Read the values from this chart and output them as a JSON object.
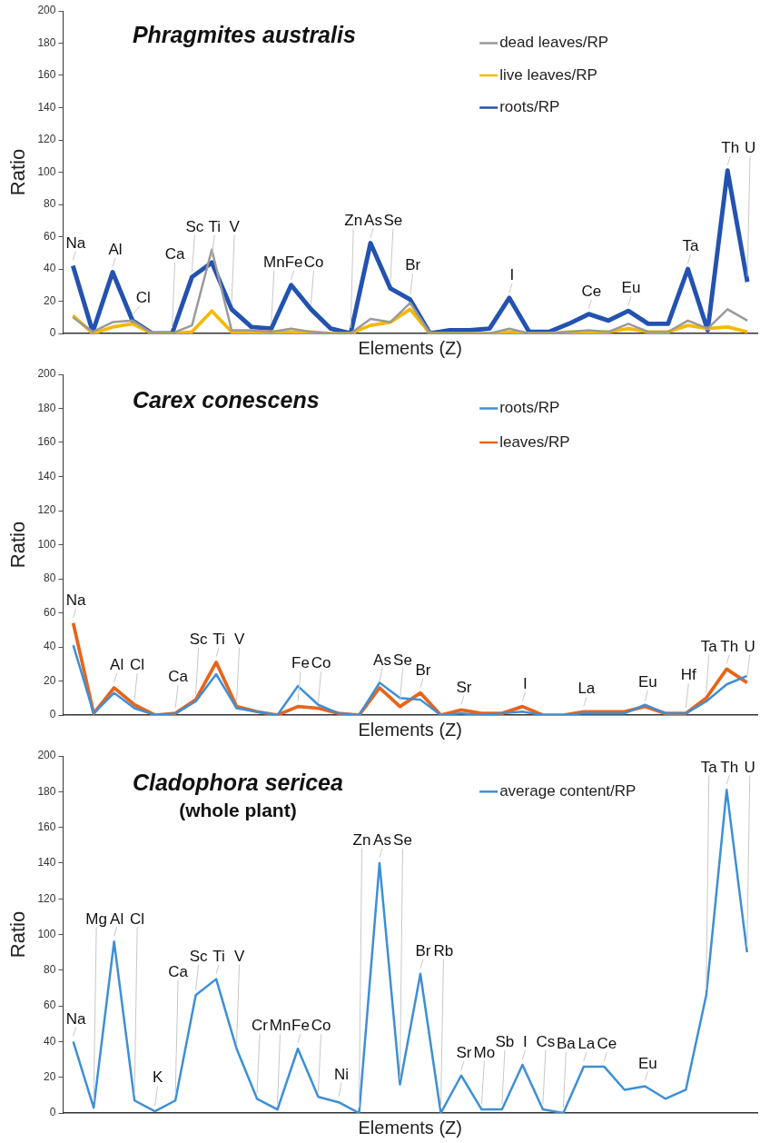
{
  "chart_data": [
    {
      "type": "line",
      "title": "Phragmites australis",
      "xlabel": "Elements (Z)",
      "ylabel": "Ratio",
      "categories": [
        null,
        null,
        null,
        null,
        null,
        null,
        null,
        null,
        null,
        null,
        null,
        null,
        null,
        null,
        null,
        null,
        null,
        null,
        null,
        null,
        null,
        null,
        null,
        null,
        null,
        null,
        null,
        null,
        null,
        null,
        null,
        null,
        null,
        null,
        null
      ],
      "ylim": [
        0,
        200
      ],
      "yticks": [
        0,
        20,
        40,
        60,
        80,
        100,
        120,
        140,
        160,
        180,
        200
      ],
      "legend": "top right",
      "marker": "none",
      "tick_labels": "y",
      "series": [
        {
          "name": "dead leaves/RP",
          "color": "#9a9a9a",
          "values": [
            10,
            1,
            7,
            8,
            0,
            0,
            5,
            52,
            2,
            2,
            1,
            3,
            1,
            0,
            0,
            9,
            7,
            19,
            0,
            0,
            0,
            0,
            3,
            0,
            0,
            1,
            2,
            1,
            6,
            1,
            1,
            8,
            3,
            15,
            8
          ]
        },
        {
          "name": "live leaves/RP",
          "color": "#f5b800",
          "values": [
            11,
            0,
            4,
            6,
            0,
            0,
            1,
            14,
            1,
            1,
            1,
            1,
            1,
            0,
            0,
            5,
            7,
            15,
            0,
            0,
            0,
            0,
            1,
            0,
            0,
            1,
            1,
            1,
            3,
            1,
            1,
            5,
            3,
            4,
            1
          ]
        },
        {
          "name": "roots/RP",
          "color": "#2352b0",
          "values": [
            42,
            1,
            38,
            8,
            0,
            0,
            35,
            44,
            15,
            4,
            3,
            30,
            15,
            3,
            0,
            56,
            28,
            21,
            0,
            2,
            2,
            3,
            22,
            1,
            1,
            6,
            12,
            8,
            14,
            6,
            6,
            40,
            2,
            101,
            32
          ],
          "value_labels": [
            "Na",
            null,
            "Al",
            null,
            null,
            "Ca",
            "Sc",
            "Ti",
            "V",
            null,
            "Mn",
            "Fe",
            "Co",
            null,
            "Zn",
            "As",
            "Se",
            "Br",
            null,
            null,
            null,
            null,
            "I",
            null,
            null,
            null,
            "Ce",
            null,
            "Eu",
            null,
            null,
            "Ta",
            null,
            "Th",
            "U"
          ]
        }
      ],
      "annotations": [
        "Cl"
      ]
    },
    {
      "type": "line",
      "title": "Carex conescens",
      "xlabel": "Elements (Z)",
      "ylabel": "Ratio",
      "categories": [
        null,
        null,
        null,
        null,
        null,
        null,
        null,
        null,
        null,
        null,
        null,
        null,
        null,
        null,
        null,
        null,
        null,
        null,
        null,
        null,
        null,
        null,
        null,
        null,
        null,
        null,
        null,
        null,
        null,
        null,
        null,
        null,
        null,
        null
      ],
      "ylim": [
        0,
        200
      ],
      "yticks": [
        0,
        20,
        40,
        60,
        80,
        100,
        120,
        140,
        160,
        180,
        200
      ],
      "legend": "top right",
      "marker": "none",
      "tick_labels": "y",
      "series": [
        {
          "name": "roots/RP",
          "color": "#3d8fd6",
          "values": [
            41,
            1,
            13,
            4,
            0,
            1,
            8,
            24,
            4,
            2,
            0,
            17,
            6,
            1,
            0,
            19,
            10,
            9,
            0,
            1,
            0,
            1,
            2,
            0,
            0,
            1,
            1,
            1,
            6,
            1,
            1,
            8,
            18,
            23
          ]
        },
        {
          "name": "leaves/RP",
          "color": "#e8641b",
          "values": [
            54,
            1,
            16,
            6,
            0,
            1,
            9,
            31,
            5,
            2,
            0,
            5,
            4,
            1,
            0,
            16,
            5,
            13,
            0,
            3,
            1,
            1,
            5,
            0,
            0,
            2,
            2,
            2,
            5,
            1,
            1,
            10,
            27,
            19
          ],
          "value_labels": [
            "Na",
            null,
            "Al",
            "Cl",
            null,
            "Ca",
            "Sc",
            "Ti",
            "V",
            null,
            null,
            "Fe",
            "Co",
            null,
            null,
            "As",
            "Se",
            "Br",
            null,
            "Sr",
            null,
            null,
            "I",
            null,
            null,
            "La",
            null,
            null,
            "Eu",
            null,
            "Hf",
            "Ta",
            "Th",
            "U"
          ]
        }
      ]
    },
    {
      "type": "line",
      "title": "Cladophora sericea",
      "subtitle": "(whole plant)",
      "xlabel": "Elements (Z)",
      "ylabel": "Ratio",
      "categories": [
        null,
        null,
        null,
        null,
        null,
        null,
        null,
        null,
        null,
        null,
        null,
        null,
        null,
        null,
        null,
        null,
        null,
        null,
        null,
        null,
        null,
        null,
        null,
        null,
        null,
        null,
        null,
        null,
        null,
        null,
        null,
        null,
        null,
        null
      ],
      "ylim": [
        0,
        200
      ],
      "yticks": [
        0,
        20,
        40,
        60,
        80,
        100,
        120,
        140,
        160,
        180,
        200
      ],
      "legend": "top right",
      "marker": "none",
      "tick_labels": "y",
      "series": [
        {
          "name": "average content/RP",
          "color": "#3d8fd6",
          "values": [
            40,
            3,
            96,
            7,
            1,
            7,
            66,
            75,
            36,
            8,
            2,
            36,
            9,
            6,
            0,
            140,
            16,
            78,
            0,
            21,
            2,
            2,
            27,
            2,
            0,
            26,
            26,
            13,
            15,
            8,
            13,
            66,
            181,
            90
          ],
          "value_labels": [
            "Na",
            "Mg",
            "Al",
            "Cl",
            "K",
            "Ca",
            "Sc",
            "Ti",
            "V",
            "Cr",
            "Mn",
            "Fe",
            "Co",
            "Ni",
            "Zn",
            "As",
            "Se",
            "Br",
            "Rb",
            "Sr",
            "Mo",
            "Sb",
            "I",
            "Cs",
            "Ba",
            "La",
            "Ce",
            null,
            "Eu",
            null,
            null,
            "Ta",
            "Th",
            "U"
          ]
        }
      ]
    }
  ]
}
